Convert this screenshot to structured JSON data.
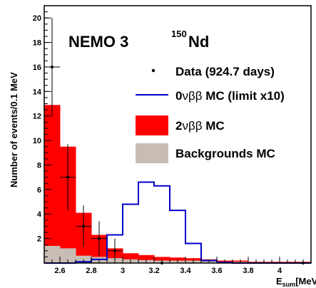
{
  "chart_data": {
    "type": "histogram",
    "experiment": "NEMO 3",
    "isotope_mass": "150",
    "isotope_symbol": "Nd",
    "xlabel_main": "E",
    "xlabel_sub": "sum",
    "xlabel_unit": "[MeV]",
    "ylabel": "Number of events/0.1 MeV",
    "xlim": [
      2.5,
      4.2
    ],
    "ylim": [
      0,
      21
    ],
    "x_ticks": [
      "2.6",
      "2.8",
      "3",
      "3.2",
      "3.4",
      "3.6",
      "3.8",
      "4"
    ],
    "y_ticks": [
      "2",
      "4",
      "6",
      "8",
      "10",
      "12",
      "14",
      "16",
      "18",
      "20"
    ],
    "bin_edges": [
      2.5,
      2.6,
      2.7,
      2.8,
      2.9,
      3.0,
      3.1,
      3.2,
      3.3,
      3.4,
      3.5,
      3.6,
      3.7,
      3.8,
      3.9,
      4.0,
      4.1,
      4.2
    ],
    "legend": {
      "data": "Data (924.7 days)",
      "zero_nu_prefix": "0",
      "zero_nu_suffix": " MC (limit x10)",
      "two_nu_prefix": "2",
      "two_nu_suffix": " MC",
      "backgrounds": "Backgrounds MC",
      "nu_glyph": "ν",
      "beta_glyph": "ββ"
    },
    "series": [
      {
        "name": "Backgrounds MC",
        "color": "#c8bdb4",
        "values": [
          1.4,
          1.2,
          0.6,
          0.5,
          0.4,
          0.3,
          0.25,
          0.2,
          0.2,
          0.2,
          0.15,
          0.1,
          0.1,
          0.05,
          0.05,
          0.05,
          0.05
        ]
      },
      {
        "name": "2νββ MC",
        "color": "#ff0000",
        "values": [
          11.5,
          8.3,
          3.5,
          1.8,
          0.8,
          0.5,
          0.4,
          0.3,
          0.25,
          0.2,
          0.15,
          0.1,
          0.1,
          0.05,
          0.05,
          0.05,
          0.05
        ]
      },
      {
        "name": "0νββ MC (limit x10)",
        "color": "#0000cc",
        "values": [
          0,
          0,
          0.1,
          0.3,
          2.3,
          4.8,
          6.6,
          6.3,
          4.3,
          1.6,
          0.2,
          0.05,
          0,
          0,
          0,
          0,
          0
        ]
      }
    ],
    "data_points": [
      {
        "x": 2.55,
        "y": 16,
        "yerr_low": 4,
        "yerr_high": 4
      },
      {
        "x": 2.65,
        "y": 7,
        "yerr_low": 2.7,
        "yerr_high": 2.7
      },
      {
        "x": 2.75,
        "y": 3,
        "yerr_low": 1.7,
        "yerr_high": 1.7
      },
      {
        "x": 2.85,
        "y": 2,
        "yerr_low": 1.4,
        "yerr_high": 1.4
      },
      {
        "x": 2.95,
        "y": 1,
        "yerr_low": 1,
        "yerr_high": 1
      },
      {
        "x": 3.25,
        "y": 0,
        "yerr_low": 0,
        "yerr_high": 0
      },
      {
        "x": 4.15,
        "y": 0,
        "yerr_low": 0,
        "yerr_high": 0
      }
    ]
  }
}
